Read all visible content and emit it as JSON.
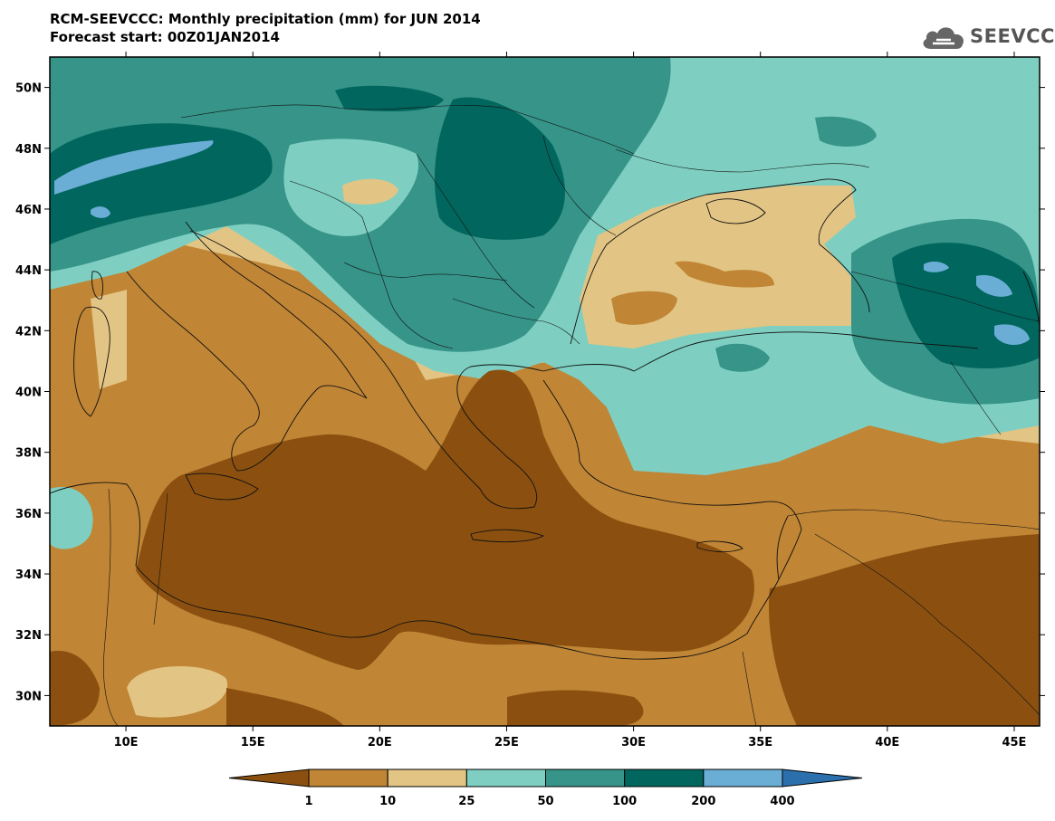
{
  "header": {
    "title_line1": "RCM-SEEVCCC: Monthly precipitation (mm) for JUN 2014",
    "title_line2": "Forecast start: 00Z01JAN2014"
  },
  "logo": {
    "text": "SEEVCCC",
    "icon": "cloud-icon"
  },
  "axes": {
    "lat_ticks": [
      "50N",
      "48N",
      "46N",
      "44N",
      "42N",
      "40N",
      "38N",
      "36N",
      "34N",
      "32N",
      "30N"
    ],
    "lon_ticks": [
      "10E",
      "15E",
      "20E",
      "25E",
      "30E",
      "35E",
      "40E",
      "45E"
    ]
  },
  "legend": {
    "thresholds": [
      "1",
      "10",
      "25",
      "50",
      "100",
      "200",
      "400"
    ],
    "colors": [
      "#8b5010",
      "#c08535",
      "#e2c484",
      "#7ecfc1",
      "#369488",
      "#01665e",
      "#6aaed6",
      "#2c6fad"
    ]
  },
  "map": {
    "extent": {
      "lon": [
        7,
        46
      ],
      "lat": [
        29,
        51
      ]
    },
    "projection": "latitude-longitude"
  }
}
